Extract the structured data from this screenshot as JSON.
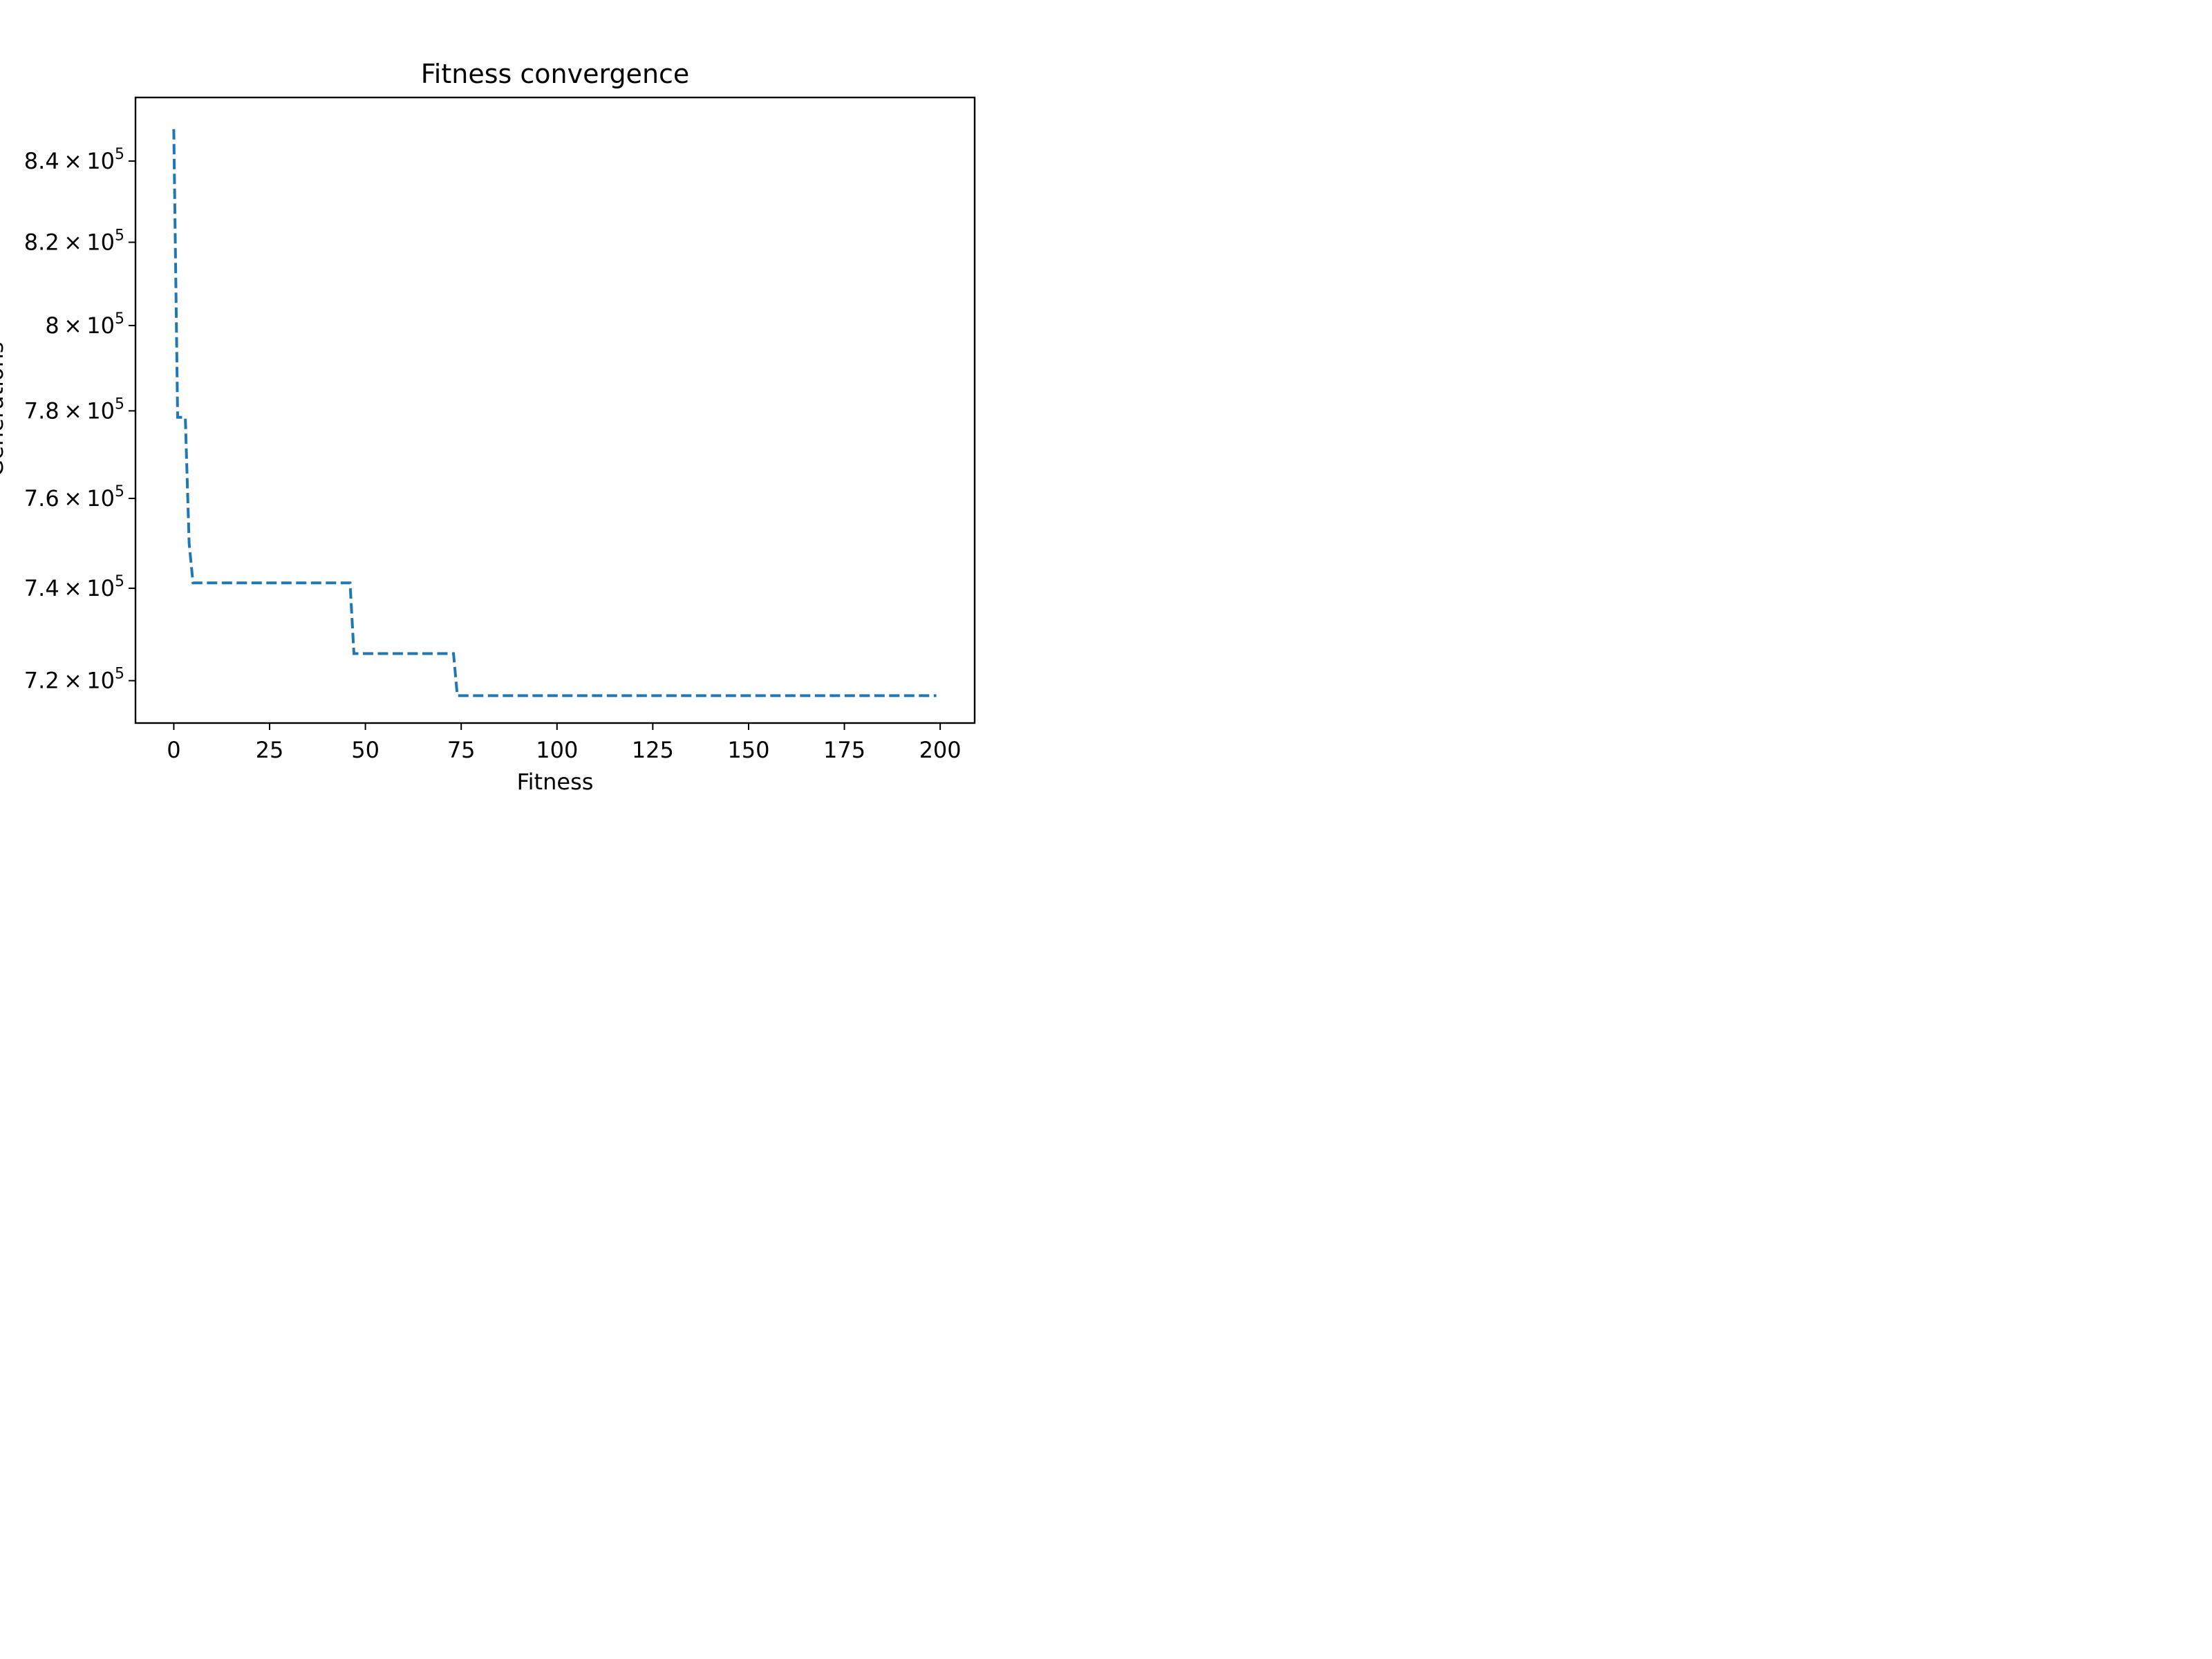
{
  "chart_data": {
    "type": "line",
    "title": "Fitness convergence",
    "xlabel": "Fitness",
    "ylabel": "Generations",
    "xlim": [
      -10,
      209
    ],
    "ylim": [
      711000,
      856000
    ],
    "yscale": "log",
    "grid": false,
    "x_ticks": [
      0,
      25,
      50,
      75,
      100,
      125,
      150,
      175,
      200
    ],
    "y_ticks": [
      {
        "value": 720000,
        "mantissa": "7.2",
        "base": "10",
        "exp": "5"
      },
      {
        "value": 740000,
        "mantissa": "7.4",
        "base": "10",
        "exp": "5"
      },
      {
        "value": 760000,
        "mantissa": "7.6",
        "base": "10",
        "exp": "5"
      },
      {
        "value": 780000,
        "mantissa": "7.8",
        "base": "10",
        "exp": "5"
      },
      {
        "value": 800000,
        "mantissa": "8",
        "base": "10",
        "exp": "5"
      },
      {
        "value": 820000,
        "mantissa": "8.2",
        "base": "10",
        "exp": "5"
      },
      {
        "value": 840000,
        "mantissa": "8.4",
        "base": "10",
        "exp": "5"
      }
    ],
    "series": [
      {
        "color": "#1f77b4",
        "style": "dashed",
        "x": [
          0,
          1,
          3,
          4,
          5,
          46,
          47,
          73,
          74,
          199
        ],
        "y": [
          848000,
          778500,
          778500,
          750000,
          741200,
          741200,
          725800,
          725800,
          716800,
          716800
        ]
      }
    ]
  }
}
